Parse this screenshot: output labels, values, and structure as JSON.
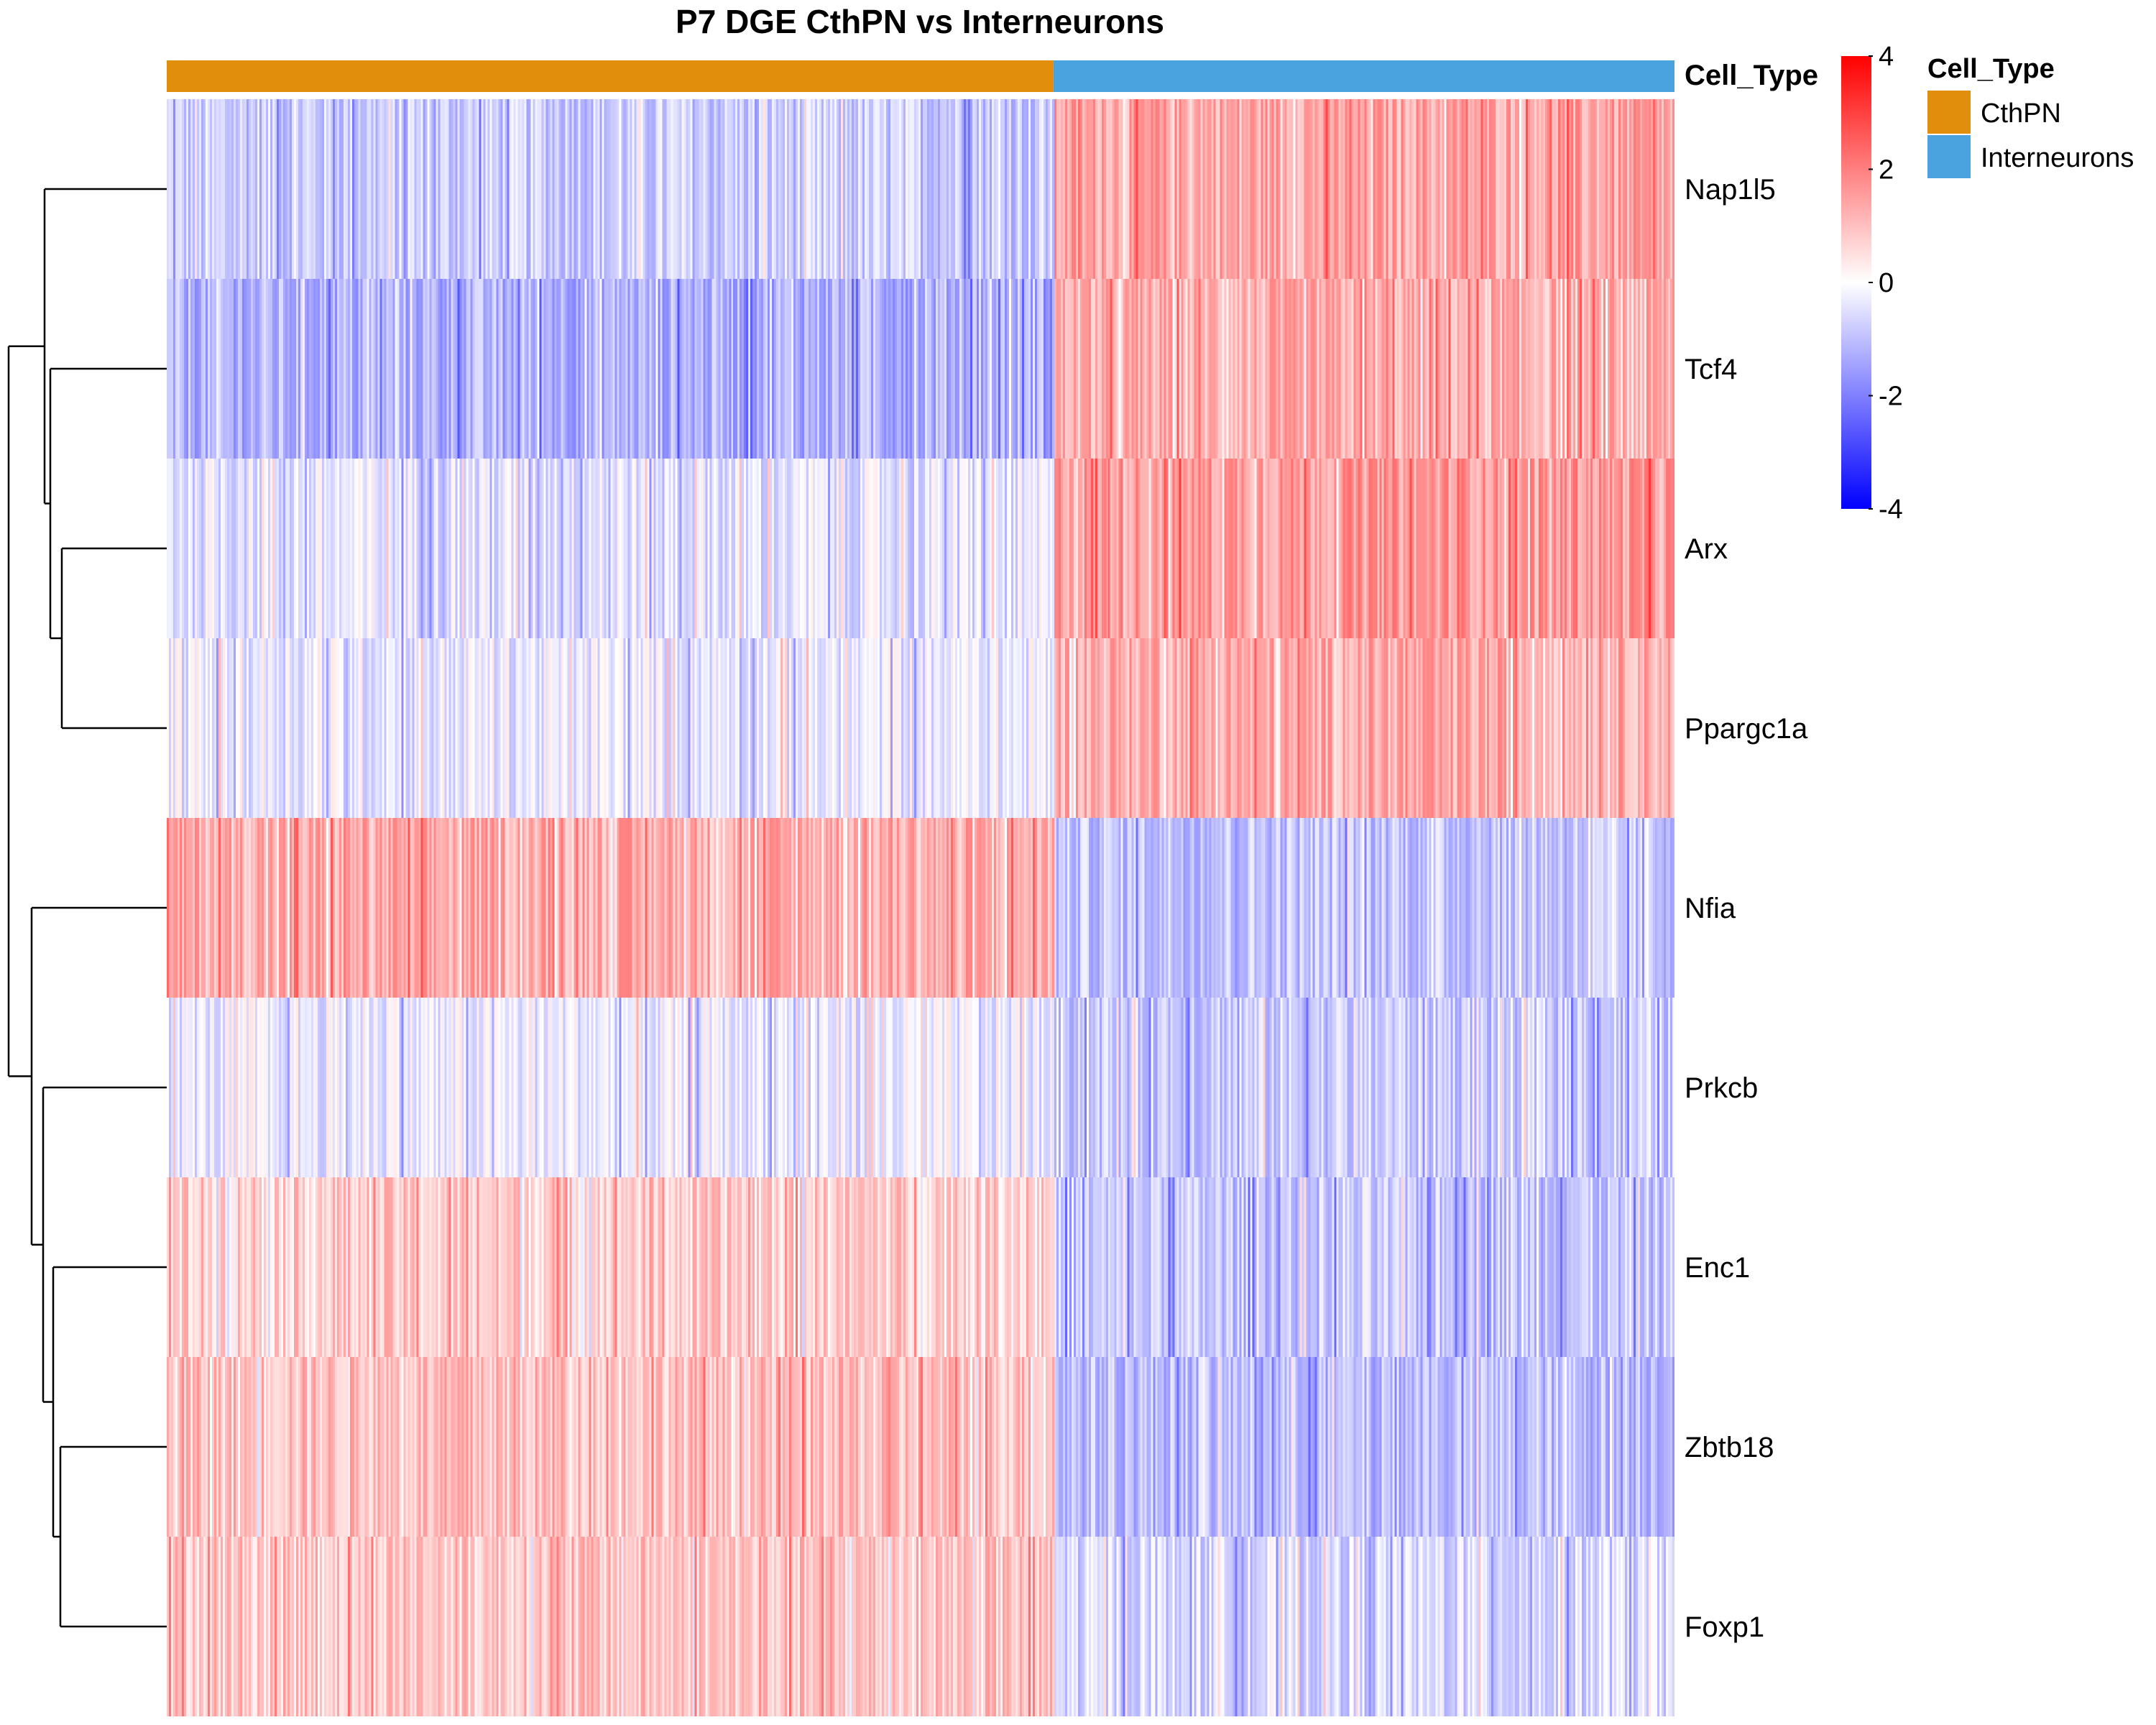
{
  "chart_data": {
    "type": "heatmap",
    "title": "P7 DGE CthPN vs Interneurons",
    "xlabel": "",
    "ylabel": "",
    "rows": [
      "Nap1l5",
      "Tcf4",
      "Arx",
      "Ppargc1a",
      "Nfia",
      "Prkcb",
      "Enc1",
      "Zbtb18",
      "Foxp1"
    ],
    "column_annotation": {
      "name": "Cell_Type",
      "groups": [
        {
          "label": "CthPN",
          "fraction": 0.588,
          "color": "#e08e0b"
        },
        {
          "label": "Interneurons",
          "fraction": 0.412,
          "color": "#4aa3df"
        }
      ]
    },
    "mean_scaled_expression": [
      {
        "gene": "Nap1l5",
        "CthPN": -0.8,
        "Interneurons": 1.4
      },
      {
        "gene": "Tcf4",
        "CthPN": -1.2,
        "Interneurons": 1.2
      },
      {
        "gene": "Arx",
        "CthPN": -0.4,
        "Interneurons": 1.6
      },
      {
        "gene": "Ppargc1a",
        "CthPN": -0.3,
        "Interneurons": 1.3
      },
      {
        "gene": "Nfia",
        "CthPN": 1.3,
        "Interneurons": -0.9
      },
      {
        "gene": "Prkcb",
        "CthPN": -0.3,
        "Interneurons": -0.8
      },
      {
        "gene": "Enc1",
        "CthPN": 0.8,
        "Interneurons": -0.9
      },
      {
        "gene": "Zbtb18",
        "CthPN": 1.0,
        "Interneurons": -1.0
      },
      {
        "gene": "Foxp1",
        "CthPN": 0.9,
        "Interneurons": -0.6
      }
    ],
    "color_scale": {
      "min": -4,
      "mid": 0,
      "max": 4,
      "low_color": "#0000ff",
      "mid_color": "#ffffff",
      "high_color": "#ff0000",
      "ticks": [
        "4",
        "2",
        "0",
        "-2",
        "-4"
      ]
    },
    "legend_placement": "right",
    "grid": false
  }
}
